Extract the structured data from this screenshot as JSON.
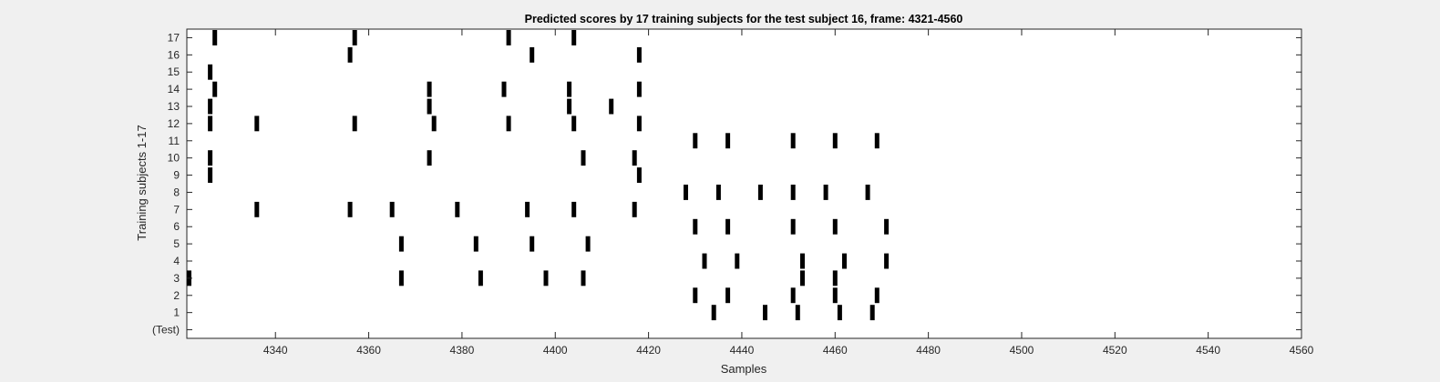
{
  "chart_data": {
    "type": "scatter",
    "title": "Predicted scores by 17 training subjects for the test subject 16, frame: 4321-4560",
    "xlabel": "Samples",
    "ylabel": "Training subjects 1-17",
    "xlim": [
      4321,
      4560
    ],
    "x_ticks": [
      4340,
      4360,
      4380,
      4400,
      4420,
      4440,
      4460,
      4480,
      4500,
      4520,
      4540,
      4560
    ],
    "y_tick_labels": [
      "(Test)",
      "1",
      "2",
      "3",
      "4",
      "5",
      "6",
      "7",
      "8",
      "9",
      "10",
      "11",
      "12",
      "13",
      "14",
      "15",
      "16",
      "17"
    ],
    "marker": "vertical-bar",
    "marker_color": "#000000",
    "background": "#ffffff",
    "grid": false,
    "series": [
      {
        "row": 0,
        "x": []
      },
      {
        "row": 1,
        "x": [
          4434,
          4445,
          4452,
          4461,
          4468
        ]
      },
      {
        "row": 2,
        "x": [
          4430,
          4437,
          4451,
          4460,
          4469
        ]
      },
      {
        "row": 3,
        "x": [
          4321,
          4367,
          4384,
          4398,
          4406,
          4453,
          4460
        ]
      },
      {
        "row": 4,
        "x": [
          4432,
          4439,
          4453,
          4462,
          4471
        ]
      },
      {
        "row": 5,
        "x": [
          4367,
          4383,
          4395,
          4407
        ]
      },
      {
        "row": 6,
        "x": [
          4430,
          4437,
          4451,
          4460,
          4471
        ]
      },
      {
        "row": 7,
        "x": [
          4336,
          4356,
          4365,
          4379,
          4394,
          4404,
          4417
        ]
      },
      {
        "row": 8,
        "x": [
          4428,
          4435,
          4444,
          4451,
          4458,
          4467
        ]
      },
      {
        "row": 9,
        "x": [
          4326,
          4418
        ]
      },
      {
        "row": 10,
        "x": [
          4326,
          4373,
          4406,
          4417
        ]
      },
      {
        "row": 11,
        "x": [
          4430,
          4437,
          4451,
          4460,
          4469
        ]
      },
      {
        "row": 12,
        "x": [
          4326,
          4336,
          4357,
          4374,
          4390,
          4404,
          4418
        ]
      },
      {
        "row": 13,
        "x": [
          4326,
          4373,
          4403,
          4412
        ]
      },
      {
        "row": 14,
        "x": [
          4327,
          4373,
          4389,
          4403,
          4418
        ]
      },
      {
        "row": 15,
        "x": [
          4326
        ]
      },
      {
        "row": 16,
        "x": [
          4356,
          4395,
          4418
        ]
      },
      {
        "row": 17,
        "x": [
          4327,
          4357,
          4390,
          4404
        ]
      }
    ]
  }
}
